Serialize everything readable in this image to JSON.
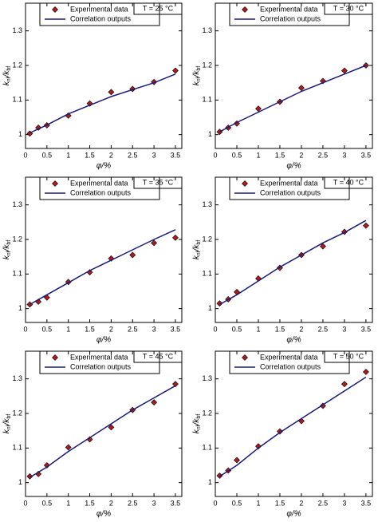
{
  "chart_data": [
    {
      "type": "scatter",
      "annotation": "T = 25 °C",
      "xlabel": "φ/%",
      "ylabel": [
        "k",
        "nf",
        "/k",
        "bf"
      ],
      "xlim": [
        0,
        3.65
      ],
      "ylim": [
        0.96,
        1.38
      ],
      "xticks": [
        0,
        0.5,
        1,
        1.5,
        2,
        2.5,
        3,
        3.5
      ],
      "yticks": [
        1,
        1.1,
        1.2,
        1.3
      ],
      "series": [
        {
          "name": "Experimental data",
          "type": "scatter",
          "color": "#b11a1a",
          "x": [
            0.1,
            0.3,
            0.5,
            1,
            1.5,
            2,
            2.5,
            3,
            3.5
          ],
          "values": [
            1.003,
            1.02,
            1.027,
            1.055,
            1.09,
            1.123,
            1.132,
            1.152,
            1.185
          ]
        },
        {
          "name": "Correlation outputs",
          "type": "line",
          "color": "#1a1a7a",
          "x": [
            0.1,
            0.5,
            1,
            1.5,
            2,
            2.5,
            3,
            3.5
          ],
          "values": [
            1.005,
            1.028,
            1.06,
            1.085,
            1.11,
            1.13,
            1.15,
            1.175
          ]
        }
      ]
    },
    {
      "type": "scatter",
      "annotation": "T = 30 °C",
      "xlabel": "φ/%",
      "ylabel": [
        "k",
        "nf",
        "/k",
        "bf"
      ],
      "xlim": [
        0,
        3.65
      ],
      "ylim": [
        0.96,
        1.38
      ],
      "xticks": [
        0,
        0.5,
        1,
        1.5,
        2,
        2.5,
        3,
        3.5
      ],
      "yticks": [
        1,
        1.1,
        1.2,
        1.3
      ],
      "series": [
        {
          "name": "Experimental data",
          "type": "scatter",
          "color": "#b11a1a",
          "x": [
            0.1,
            0.3,
            0.5,
            1,
            1.5,
            2,
            2.5,
            3,
            3.5
          ],
          "values": [
            1.008,
            1.02,
            1.032,
            1.075,
            1.095,
            1.135,
            1.155,
            1.185,
            1.2
          ]
        },
        {
          "name": "Correlation outputs",
          "type": "line",
          "color": "#1a1a7a",
          "x": [
            0.1,
            0.5,
            1,
            1.5,
            2,
            2.5,
            3,
            3.5
          ],
          "values": [
            1.008,
            1.035,
            1.065,
            1.095,
            1.125,
            1.15,
            1.175,
            1.2
          ]
        }
      ]
    },
    {
      "type": "scatter",
      "annotation": "T = 35 °C",
      "xlabel": "φ/%",
      "ylabel": [
        "k",
        "nf",
        "/k",
        "bf"
      ],
      "xlim": [
        0,
        3.65
      ],
      "ylim": [
        0.96,
        1.38
      ],
      "xticks": [
        0,
        0.5,
        1,
        1.5,
        2,
        2.5,
        3,
        3.5
      ],
      "yticks": [
        1,
        1.1,
        1.2,
        1.3
      ],
      "series": [
        {
          "name": "Experimental data",
          "type": "scatter",
          "color": "#b11a1a",
          "x": [
            0.1,
            0.3,
            0.5,
            1,
            1.5,
            2,
            2.5,
            3,
            3.5
          ],
          "values": [
            1.012,
            1.02,
            1.032,
            1.077,
            1.105,
            1.145,
            1.155,
            1.19,
            1.205
          ]
        },
        {
          "name": "Correlation outputs",
          "type": "line",
          "color": "#1a1a7a",
          "x": [
            0.1,
            0.5,
            1,
            1.5,
            2,
            2.5,
            3,
            3.5
          ],
          "values": [
            1.012,
            1.04,
            1.075,
            1.11,
            1.14,
            1.17,
            1.2,
            1.228
          ]
        }
      ]
    },
    {
      "type": "scatter",
      "annotation": "T = 40 °C",
      "xlabel": "φ/%",
      "ylabel": [
        "k",
        "nf",
        "/k",
        "bf"
      ],
      "xlim": [
        0,
        3.65
      ],
      "ylim": [
        0.96,
        1.38
      ],
      "xticks": [
        0,
        0.5,
        1,
        1.5,
        2,
        2.5,
        3,
        3.5
      ],
      "yticks": [
        1,
        1.1,
        1.2,
        1.3
      ],
      "series": [
        {
          "name": "Experimental data",
          "type": "scatter",
          "color": "#b11a1a",
          "x": [
            0.1,
            0.3,
            0.5,
            1,
            1.5,
            2,
            2.5,
            3,
            3.5
          ],
          "values": [
            1.015,
            1.027,
            1.048,
            1.087,
            1.118,
            1.155,
            1.18,
            1.222,
            1.24
          ]
        },
        {
          "name": "Correlation outputs",
          "type": "line",
          "color": "#1a1a7a",
          "x": [
            0.1,
            0.5,
            1,
            1.5,
            2,
            2.5,
            3,
            3.5
          ],
          "values": [
            1.012,
            1.04,
            1.08,
            1.12,
            1.155,
            1.19,
            1.22,
            1.255
          ]
        }
      ]
    },
    {
      "type": "scatter",
      "annotation": "T = 45 °C",
      "xlabel": "φ/%",
      "ylabel": [
        "k",
        "nf",
        "/k",
        "bf"
      ],
      "xlim": [
        0,
        3.65
      ],
      "ylim": [
        0.96,
        1.38
      ],
      "xticks": [
        0,
        0.5,
        1,
        1.5,
        2,
        2.5,
        3,
        3.5
      ],
      "yticks": [
        1,
        1.1,
        1.2,
        1.3
      ],
      "series": [
        {
          "name": "Experimental data",
          "type": "scatter",
          "color": "#b11a1a",
          "x": [
            0.1,
            0.3,
            0.5,
            1,
            1.5,
            2,
            2.5,
            3,
            3.5
          ],
          "values": [
            1.018,
            1.025,
            1.05,
            1.102,
            1.125,
            1.16,
            1.21,
            1.232,
            1.285
          ]
        },
        {
          "name": "Correlation outputs",
          "type": "line",
          "color": "#1a1a7a",
          "x": [
            0.1,
            0.5,
            1,
            1.5,
            2,
            2.5,
            3,
            3.5
          ],
          "values": [
            1.015,
            1.045,
            1.09,
            1.13,
            1.17,
            1.21,
            1.245,
            1.28
          ]
        }
      ]
    },
    {
      "type": "scatter",
      "annotation": "T = 50 °C",
      "xlabel": "φ/%",
      "ylabel": [
        "k",
        "nf",
        "/k",
        "bf"
      ],
      "xlim": [
        0,
        3.65
      ],
      "ylim": [
        0.96,
        1.38
      ],
      "xticks": [
        0,
        0.5,
        1,
        1.5,
        2,
        2.5,
        3,
        3.5
      ],
      "yticks": [
        1,
        1.1,
        1.2,
        1.3
      ],
      "series": [
        {
          "name": "Experimental data",
          "type": "scatter",
          "color": "#b11a1a",
          "x": [
            0.1,
            0.3,
            0.5,
            1,
            1.5,
            2,
            2.5,
            3,
            3.5
          ],
          "values": [
            1.02,
            1.035,
            1.065,
            1.105,
            1.148,
            1.178,
            1.222,
            1.285,
            1.32
          ]
        },
        {
          "name": "Correlation outputs",
          "type": "line",
          "color": "#1a1a7a",
          "x": [
            0.1,
            0.5,
            1,
            1.5,
            2,
            2.5,
            3,
            3.5
          ],
          "values": [
            1.018,
            1.05,
            1.1,
            1.145,
            1.185,
            1.225,
            1.265,
            1.305
          ]
        }
      ]
    }
  ]
}
